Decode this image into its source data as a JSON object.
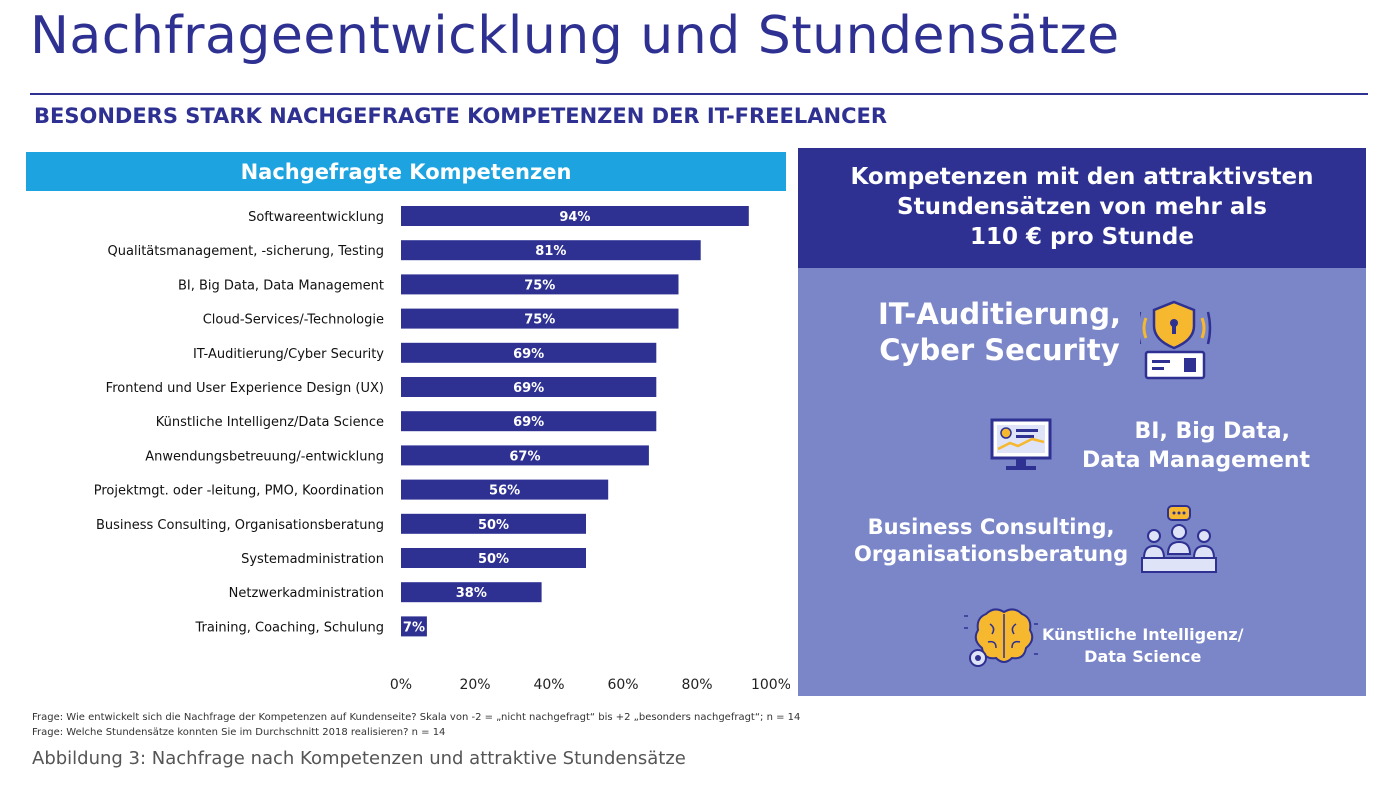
{
  "title": "Nachfrageentwicklung und Stundensätze",
  "subtitle": "BESONDERS STARK NACHGEFRAGTE KOMPETENZEN DER IT-FREELANCER",
  "left_header": "Nachgefragte Kompetenzen",
  "chart_data": {
    "type": "bar",
    "orientation": "horizontal",
    "title": "Nachgefragte Kompetenzen",
    "categories": [
      "Softwareentwicklung",
      "Qualitätsmanagement, -sicherung, Testing",
      "BI, Big Data, Data Management",
      "Cloud-Services/-Technologie",
      "IT-Auditierung/Cyber Security",
      "Frontend und User Experience Design (UX)",
      "Künstliche Intelligenz/Data Science",
      "Anwendungsbetreuung/-entwicklung",
      "Projektmgt. oder -leitung, PMO, Koordination",
      "Business Consulting, Organisationsberatung",
      "Systemadministration",
      "Netzwerkadministration",
      "Training, Coaching, Schulung"
    ],
    "values": [
      94,
      81,
      75,
      75,
      69,
      69,
      69,
      67,
      56,
      50,
      50,
      38,
      7
    ],
    "value_labels": [
      "94%",
      "81%",
      "75%",
      "75%",
      "69%",
      "69%",
      "69%",
      "67%",
      "56%",
      "50%",
      "50%",
      "38%",
      "7%"
    ],
    "xlim": [
      0,
      100
    ],
    "xticks": [
      "0%",
      "20%",
      "40%",
      "60%",
      "80%",
      "100%"
    ],
    "bar_color": "#2e3192",
    "grid": false
  },
  "right_panel": {
    "header_lines": [
      "Kompetenzen mit den attraktivsten",
      "Stundensätzen von mehr als",
      "110 € pro Stunde"
    ],
    "items": [
      {
        "lines": [
          "IT-Auditierung,",
          "Cyber Security"
        ],
        "icon": "shield-lock-icon"
      },
      {
        "lines": [
          "BI, Big Data,",
          "Data Management"
        ],
        "icon": "monitor-dashboard-icon"
      },
      {
        "lines": [
          "Business Consulting,",
          "Organisationsberatung"
        ],
        "icon": "team-meeting-icon"
      },
      {
        "lines": [
          "Künstliche Intelligenz/",
          "Data Science"
        ],
        "icon": "brain-gear-icon"
      }
    ]
  },
  "footnotes": [
    "Frage: Wie entwickelt sich die Nachfrage der Kompetenzen auf Kundenseite? Skala von -2 = „nicht nachgefragt“ bis +2 „besonders nachgefragt“; n = 14",
    "Frage: Welche Stundensätze konnten Sie im Durchschnitt 2018 realisieren? n = 14"
  ],
  "caption": "Abbildung 3: Nachfrage nach Kompetenzen und attraktive Stundensätze",
  "colors": {
    "title": "#2e3192",
    "header_blue": "#1da4e0",
    "bar": "#2e3192",
    "panel_dark": "#2e3192",
    "panel_light": "#7b86c8",
    "icon_gold": "#f5b82e"
  }
}
